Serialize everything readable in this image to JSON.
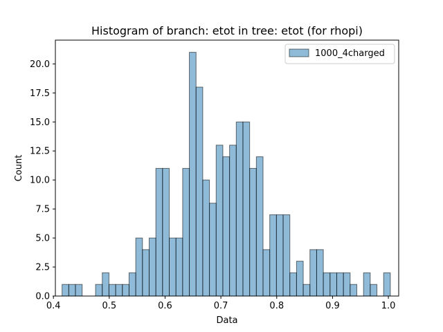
{
  "chart_data": {
    "type": "bar",
    "title": "Histogram of branch: etot in tree: etot (for rhopi)",
    "xlabel": "Data",
    "ylabel": "Count",
    "xlim": [
      0.4035,
      1.0185
    ],
    "ylim": [
      0,
      22.05
    ],
    "grid": false,
    "legend_position": "top-right",
    "bin_width": 0.012,
    "bin_start": 0.4155,
    "x_ticks": [
      0.4,
      0.5,
      0.6,
      0.7,
      0.8,
      0.9,
      1.0
    ],
    "x_tick_labels": [
      "0.4",
      "0.5",
      "0.6",
      "0.7",
      "0.8",
      "0.9",
      "1.0"
    ],
    "y_ticks": [
      0,
      2.5,
      5,
      7.5,
      10,
      12.5,
      15,
      17.5,
      20
    ],
    "y_tick_labels": [
      "0.0",
      "2.5",
      "5.0",
      "7.5",
      "10.0",
      "12.5",
      "15.0",
      "17.5",
      "20.0"
    ],
    "series": [
      {
        "name": "1000_4charged",
        "color": "#1f77b4",
        "fill_opacity": 0.5,
        "values": [
          1,
          1,
          1,
          0,
          0,
          1,
          2,
          1,
          1,
          1,
          2,
          5,
          4,
          5,
          11,
          11,
          5,
          5,
          11,
          21,
          18,
          10,
          8,
          13,
          12,
          13,
          15,
          15,
          11,
          12,
          4,
          7,
          7,
          7,
          2,
          3,
          1,
          4,
          4,
          2,
          2,
          2,
          2,
          1,
          0,
          2,
          1,
          0,
          2
        ]
      }
    ]
  }
}
